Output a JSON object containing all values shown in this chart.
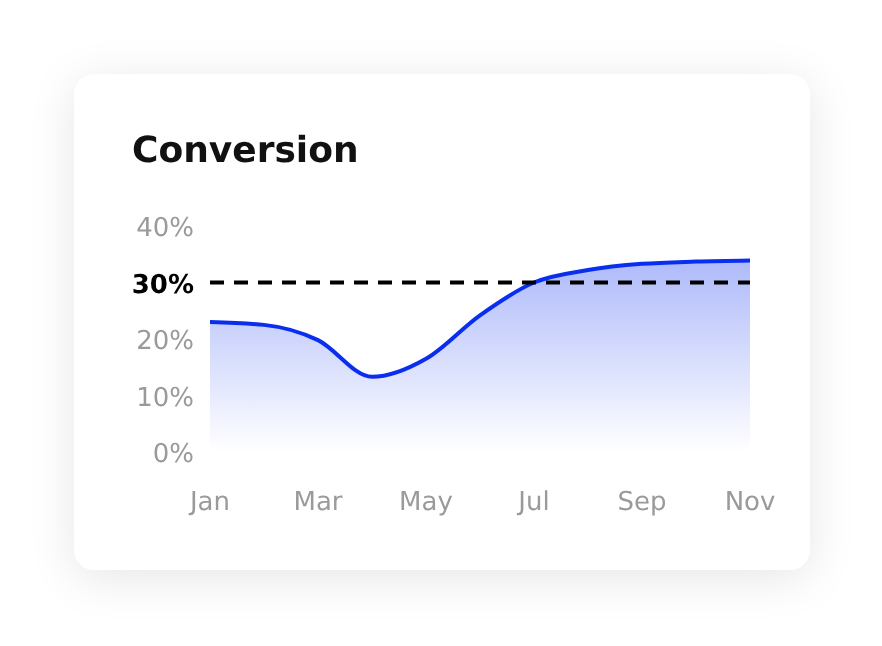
{
  "chart_data": {
    "type": "area",
    "title": "Conversion",
    "categories": [
      "Jan",
      null,
      "Mar",
      null,
      "May",
      null,
      "Jul",
      null,
      "Sep",
      null,
      "Nov"
    ],
    "series": [
      {
        "color": "#0a2ef0",
        "values": [
          23.0,
          22.5,
          19.8,
          13.3,
          16.5,
          24.2,
          30.0,
          32.2,
          33.3,
          33.7,
          33.9
        ]
      }
    ],
    "ylim": [
      0,
      40
    ],
    "yticks": [
      {
        "value": 0,
        "label": "0%"
      },
      {
        "value": 10,
        "label": "10%"
      },
      {
        "value": 20,
        "label": "20%"
      },
      {
        "value": 30,
        "label": "30%"
      },
      {
        "value": 40,
        "label": "40%"
      }
    ],
    "ref_lines": [
      {
        "axis": "y",
        "value": 30,
        "color": "#000000",
        "line_style": "dashed"
      }
    ],
    "grid": false,
    "legend": false,
    "marker": "none",
    "line_style": "solid"
  }
}
